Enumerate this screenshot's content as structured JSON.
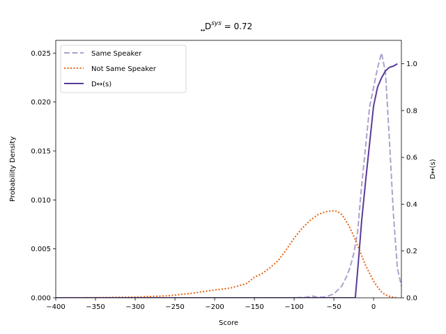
{
  "chart_data": {
    "type": "line",
    "title": {
      "main": "D",
      "sub": "↔",
      "sup": "sys",
      "rest": " = 0.72"
    },
    "xlabel": "Score",
    "ylabel": "Probability Density",
    "y2label": "D↔(s)",
    "xlim": [
      -400,
      35
    ],
    "ylim": [
      0,
      0.0263
    ],
    "y2lim": [
      0,
      1.1
    ],
    "xticks": [
      -400,
      -350,
      -300,
      -250,
      -200,
      -150,
      -100,
      -50,
      0
    ],
    "xtick_labels": [
      "−400",
      "−350",
      "−300",
      "−250",
      "−200",
      "−150",
      "−100",
      "−50",
      "0"
    ],
    "yticks": [
      0,
      0.005,
      0.01,
      0.015,
      0.02,
      0.025
    ],
    "ytick_labels": [
      "0.000",
      "0.005",
      "0.010",
      "0.015",
      "0.020",
      "0.025"
    ],
    "y2ticks": [
      0,
      0.2,
      0.4,
      0.6,
      0.8,
      1.0
    ],
    "y2tick_labels": [
      "0.0",
      "0.2",
      "0.4",
      "0.6",
      "0.8",
      "1.0"
    ],
    "grid": false,
    "legend_position": "top-left",
    "series": [
      {
        "name": "Same Speaker",
        "axis": "left",
        "color": "#aaa2cc",
        "style": "dashed",
        "x": [
          -400,
          -100,
          -85,
          -78,
          -70,
          -60,
          -50,
          -40,
          -35,
          -30,
          -25,
          -20,
          -15,
          -10,
          -5,
          0,
          5,
          10,
          15,
          20,
          25,
          30,
          35
        ],
        "y": [
          0,
          0,
          5e-05,
          0.0002,
          5e-05,
          0.0001,
          0.0004,
          0.0012,
          0.002,
          0.003,
          0.0045,
          0.0068,
          0.0115,
          0.0155,
          0.0195,
          0.0215,
          0.0235,
          0.025,
          0.023,
          0.016,
          0.0085,
          0.003,
          0.0012
        ]
      },
      {
        "name": "Not Same Speaker",
        "axis": "left",
        "color": "#e8600c",
        "style": "dotted",
        "x": [
          -400,
          -350,
          -300,
          -260,
          -230,
          -200,
          -180,
          -160,
          -150,
          -140,
          -130,
          -120,
          -110,
          -100,
          -90,
          -80,
          -70,
          -60,
          -50,
          -45,
          -40,
          -35,
          -30,
          -25,
          -20,
          -15,
          -10,
          -5,
          0,
          5,
          10,
          15,
          20,
          25,
          30
        ],
        "y": [
          0,
          2e-05,
          8e-05,
          0.0002,
          0.00045,
          0.0008,
          0.001,
          0.00145,
          0.0021,
          0.0025,
          0.0031,
          0.0038,
          0.0049,
          0.0061,
          0.0071,
          0.0079,
          0.0085,
          0.0088,
          0.0089,
          0.0088,
          0.0085,
          0.0079,
          0.0072,
          0.0063,
          0.0053,
          0.0043,
          0.0033,
          0.0025,
          0.0017,
          0.0011,
          0.0006,
          0.0003,
          0.00015,
          5e-05,
          0
        ]
      },
      {
        "name": "D↔(s)",
        "axis": "right",
        "color": "#5a3a96",
        "style": "solid",
        "x": [
          -400,
          -23,
          -19,
          -15,
          -10,
          -5,
          0,
          5,
          10,
          15,
          20,
          25,
          30
        ],
        "y": [
          0,
          0,
          0.16,
          0.33,
          0.5,
          0.66,
          0.82,
          0.9,
          0.94,
          0.97,
          0.985,
          0.99,
          1.0
        ]
      }
    ]
  }
}
